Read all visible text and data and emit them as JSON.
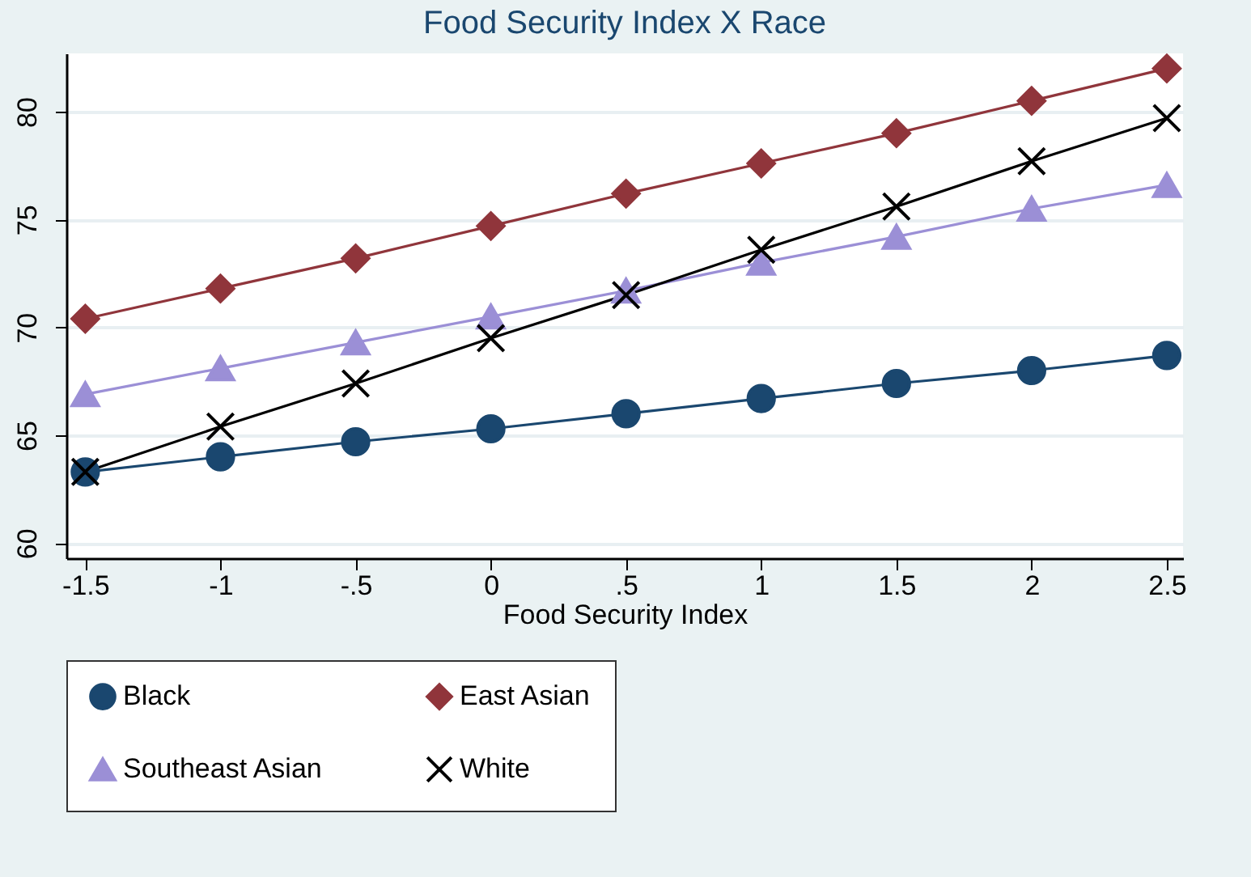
{
  "chart_data": {
    "type": "line",
    "title": "Food Security Index X Race",
    "xlabel": "Food Security Index",
    "x": [
      -1.5,
      -1,
      -0.5,
      0,
      0.5,
      1,
      1.5,
      2,
      2.5
    ],
    "series": [
      {
        "name": "Black",
        "color": "#1a476f",
        "marker": "circle",
        "values": [
          63.3,
          64.0,
          64.7,
          65.3,
          66.0,
          66.7,
          67.4,
          68.0,
          68.7
        ]
      },
      {
        "name": "East Asian",
        "color": "#90353b",
        "marker": "diamond",
        "values": [
          70.4,
          71.8,
          73.2,
          74.7,
          76.2,
          77.6,
          79.0,
          80.5,
          82.0
        ]
      },
      {
        "name": "Southeast Asian",
        "color": "#9b8fd6",
        "marker": "triangle",
        "values": [
          66.9,
          68.1,
          69.3,
          70.5,
          71.7,
          73.0,
          74.2,
          75.5,
          76.6
        ]
      },
      {
        "name": "White",
        "color": "#000000",
        "marker": "cross",
        "values": [
          63.3,
          65.4,
          67.4,
          69.5,
          71.5,
          73.6,
          75.6,
          77.7,
          79.7
        ]
      }
    ],
    "xlim": [
      -1.57,
      2.56
    ],
    "ylim": [
      59.3,
      82.7
    ],
    "xticks": [
      -1.5,
      -1,
      {
        "value": -0.5,
        "label": "-.5"
      },
      0,
      {
        "value": 0.5,
        "label": ".5"
      },
      1,
      1.5,
      2,
      2.5
    ],
    "yticks": [
      60,
      65,
      70,
      75,
      80
    ],
    "grid": "y",
    "legend": "bottom"
  }
}
